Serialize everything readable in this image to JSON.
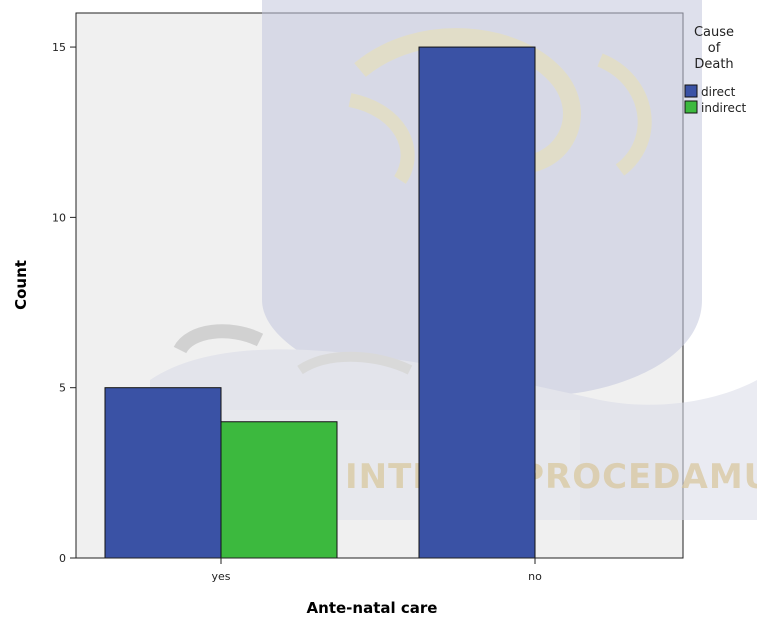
{
  "chart_data": {
    "type": "bar",
    "categories": [
      "yes",
      "no"
    ],
    "series": [
      {
        "name": "direct",
        "values": [
          5,
          15
        ],
        "color": "#3a52a5"
      },
      {
        "name": "indirect",
        "values": [
          4,
          0
        ],
        "color": "#3cb93e"
      }
    ],
    "xlabel": "Ante-natal care",
    "ylabel": "Count",
    "ylim": [
      0,
      16
    ],
    "yticks": [
      0,
      5,
      10,
      15
    ],
    "legend": {
      "title": [
        "Cause",
        "of",
        "Death"
      ],
      "placement": "top-right"
    },
    "grid": false,
    "plot_background": "#f0f0f0"
  },
  "watermark": {
    "text": "INTEGRI PROCEDAMUS"
  }
}
